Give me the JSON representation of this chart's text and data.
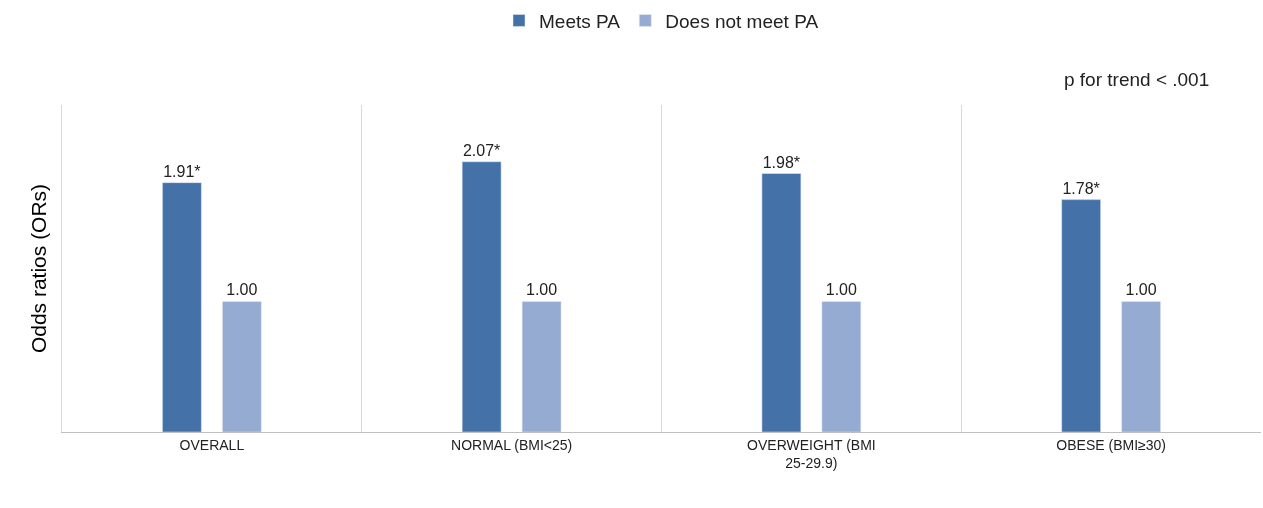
{
  "chart_data": {
    "type": "bar",
    "ylabel": "Odds ratios (ORs)",
    "categories": [
      "OVERALL",
      "NORMAL (BMI<25)",
      "OVERWEIGHT (BMI 25-29.9)",
      "OBESE (BMI≥30)"
    ],
    "series": [
      {
        "name": "Meets PA",
        "color": "#4472a8",
        "values": [
          1.91,
          2.07,
          1.98,
          1.78
        ],
        "value_labels": [
          "1.91*",
          "2.07*",
          "1.98*",
          "1.78*"
        ]
      },
      {
        "name": "Does not meet PA",
        "color": "#95abd2",
        "values": [
          1.0,
          1.0,
          1.0,
          1.0
        ],
        "value_labels": [
          "1.00",
          "1.00",
          "1.00",
          "1.00"
        ]
      }
    ],
    "annotations": [
      "p for trend < .001"
    ],
    "grid": "x",
    "legend": "top",
    "tick_labels": "x"
  }
}
